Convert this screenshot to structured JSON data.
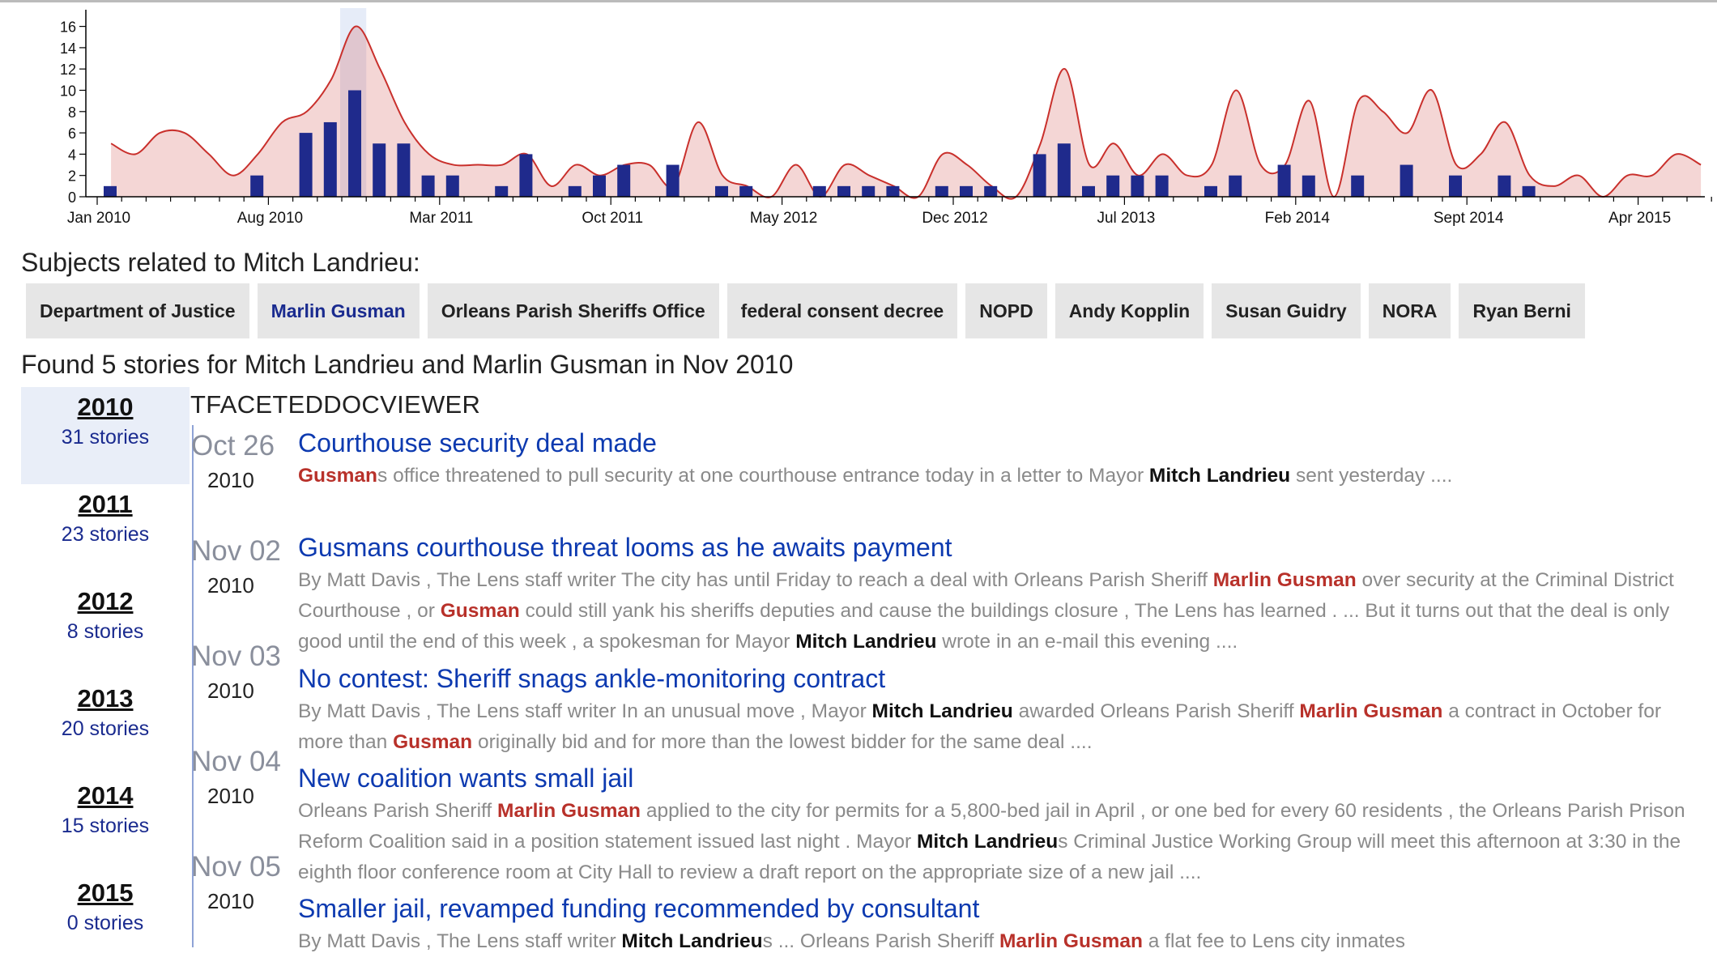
{
  "chart_data": {
    "type": "bar",
    "x_tick_labels": [
      "Jan 2010",
      "Aug 2010",
      "Mar 2011",
      "Oct 2011",
      "May 2012",
      "Dec 2012",
      "Jul 2013",
      "Feb 2014",
      "Sept 2014",
      "Apr 2015"
    ],
    "y_ticks": [
      0,
      2,
      4,
      6,
      8,
      10,
      12,
      14,
      16
    ],
    "ylim": [
      0,
      17
    ],
    "highlight_month_index": 10,
    "series": [
      {
        "type": "bar",
        "color": "#1f2a8c",
        "points": [
          [
            0,
            1
          ],
          [
            6,
            2
          ],
          [
            8,
            6
          ],
          [
            9,
            7
          ],
          [
            10,
            10
          ],
          [
            11,
            5
          ],
          [
            12,
            5
          ],
          [
            13,
            2
          ],
          [
            14,
            2
          ],
          [
            16,
            1
          ],
          [
            17,
            4
          ],
          [
            19,
            1
          ],
          [
            20,
            2
          ],
          [
            21,
            3
          ],
          [
            23,
            3
          ],
          [
            25,
            1
          ],
          [
            26,
            1
          ],
          [
            29,
            1
          ],
          [
            30,
            1
          ],
          [
            31,
            1
          ],
          [
            32,
            1
          ],
          [
            34,
            1
          ],
          [
            35,
            1
          ],
          [
            36,
            1
          ],
          [
            38,
            4
          ],
          [
            39,
            5
          ],
          [
            40,
            1
          ],
          [
            41,
            2
          ],
          [
            42,
            2
          ],
          [
            43,
            2
          ],
          [
            45,
            1
          ],
          [
            46,
            2
          ],
          [
            48,
            3
          ],
          [
            49,
            2
          ],
          [
            51,
            2
          ],
          [
            53,
            3
          ],
          [
            55,
            2
          ],
          [
            57,
            2
          ],
          [
            58,
            1
          ]
        ]
      },
      {
        "type": "area",
        "color": "#c9302c",
        "points": [
          [
            0,
            5
          ],
          [
            1,
            4
          ],
          [
            2,
            6
          ],
          [
            3,
            6
          ],
          [
            4,
            4
          ],
          [
            5,
            2
          ],
          [
            6,
            4
          ],
          [
            7,
            7
          ],
          [
            8,
            8
          ],
          [
            9,
            11
          ],
          [
            10,
            16
          ],
          [
            11,
            12
          ],
          [
            12,
            7
          ],
          [
            13,
            4
          ],
          [
            14,
            3
          ],
          [
            15,
            3
          ],
          [
            16,
            3
          ],
          [
            17,
            4
          ],
          [
            18,
            1
          ],
          [
            19,
            3
          ],
          [
            20,
            2
          ],
          [
            21,
            3
          ],
          [
            22,
            3
          ],
          [
            23,
            1
          ],
          [
            24,
            7
          ],
          [
            25,
            2
          ],
          [
            26,
            1
          ],
          [
            27,
            0
          ],
          [
            28,
            3
          ],
          [
            29,
            0
          ],
          [
            30,
            3
          ],
          [
            31,
            2
          ],
          [
            32,
            1
          ],
          [
            33,
            0
          ],
          [
            34,
            4
          ],
          [
            35,
            3
          ],
          [
            36,
            1
          ],
          [
            37,
            0
          ],
          [
            38,
            5
          ],
          [
            39,
            12
          ],
          [
            40,
            3
          ],
          [
            41,
            5
          ],
          [
            42,
            2
          ],
          [
            43,
            4
          ],
          [
            44,
            2
          ],
          [
            45,
            3
          ],
          [
            46,
            10
          ],
          [
            47,
            3
          ],
          [
            48,
            3
          ],
          [
            49,
            9
          ],
          [
            50,
            0
          ],
          [
            51,
            9
          ],
          [
            52,
            8
          ],
          [
            53,
            6
          ],
          [
            54,
            10
          ],
          [
            55,
            3
          ],
          [
            56,
            4
          ],
          [
            57,
            7
          ],
          [
            58,
            2
          ],
          [
            59,
            1
          ],
          [
            60,
            2
          ],
          [
            61,
            0
          ],
          [
            62,
            2
          ],
          [
            63,
            2
          ],
          [
            64,
            4
          ],
          [
            65,
            3
          ]
        ]
      }
    ]
  },
  "subjects": {
    "title": "Subjects related to Mitch Landrieu:",
    "items": [
      "Department of Justice",
      "Marlin Gusman",
      "Orleans Parish Sheriffs Office",
      "federal consent decree",
      "NOPD",
      "Andy Kopplin",
      "Susan Guidry",
      "NORA",
      "Ryan Berni"
    ],
    "active": "Marlin Gusman"
  },
  "found_text": "Found 5 stories for Mitch Landrieu and Marlin Gusman in Nov 2010",
  "years": [
    {
      "year": "2010",
      "count": "31 stories",
      "selected": true
    },
    {
      "year": "2011",
      "count": "23 stories"
    },
    {
      "year": "2012",
      "count": "8 stories"
    },
    {
      "year": "2013",
      "count": "20 stories"
    },
    {
      "year": "2014",
      "count": "15 stories"
    },
    {
      "year": "2015",
      "count": "0 stories"
    }
  ],
  "viewer_title": "TFACETEDDOCVIEWER",
  "stories": [
    {
      "date": "Oct 26",
      "year": "2010",
      "title": "Courthouse security deal made",
      "snippet": [
        [
          "r",
          "Gusman"
        ],
        [
          "t",
          "s office threatened to pull security at one courthouse entrance today in a letter to Mayor "
        ],
        [
          "b",
          "Mitch Landrieu"
        ],
        [
          "t",
          " sent yesterday ...."
        ]
      ]
    },
    {
      "date": "Nov 02",
      "year": "2010",
      "title": "Gusmans courthouse threat looms as he awaits payment",
      "snippet": [
        [
          "t",
          "By Matt Davis , The Lens staff writer The city has until Friday to reach a deal with Orleans Parish Sheriff "
        ],
        [
          "r",
          "Marlin Gusman"
        ],
        [
          "t",
          " over security at the Criminal District Courthouse , or "
        ],
        [
          "r",
          "Gusman"
        ],
        [
          "t",
          " could still yank his sheriffs deputies and cause the buildings closure , The Lens has learned . ... But it turns out that the deal is only good until the end of this week , a spokesman for Mayor "
        ],
        [
          "b",
          "Mitch Landrieu"
        ],
        [
          "t",
          " wrote in an e-mail this evening ...."
        ]
      ]
    },
    {
      "date": "Nov 03",
      "year": "2010",
      "title": "No contest: Sheriff snags ankle-monitoring contract",
      "snippet": [
        [
          "t",
          "By Matt Davis , The Lens staff writer In an unusual move , Mayor "
        ],
        [
          "b",
          "Mitch Landrieu"
        ],
        [
          "t",
          " awarded Orleans Parish Sheriff "
        ],
        [
          "r",
          "Marlin Gusman"
        ],
        [
          "t",
          " a contract in October for more than "
        ],
        [
          "r",
          "Gusman"
        ],
        [
          "t",
          " originally bid and for more than the lowest bidder for the same deal ...."
        ]
      ]
    },
    {
      "date": "Nov 04",
      "year": "2010",
      "title": "New coalition wants small jail",
      "snippet": [
        [
          "t",
          "Orleans Parish Sheriff "
        ],
        [
          "r",
          "Marlin Gusman"
        ],
        [
          "t",
          " applied to the city for permits for a 5,800-bed jail in April , or one bed for every 60 residents , the Orleans Parish Prison Reform Coalition said in a position statement issued last night . Mayor "
        ],
        [
          "b",
          "Mitch Landrieu"
        ],
        [
          "t",
          "s Criminal Justice Working Group will meet this afternoon at 3:30 in the eighth floor conference room at City Hall to review a draft report on the appropriate size of a new jail ...."
        ]
      ]
    },
    {
      "date": "Nov 05",
      "year": "2010",
      "title": "Smaller jail, revamped funding recommended by consultant",
      "snippet": [
        [
          "t",
          "By Matt Davis , The Lens staff writer "
        ],
        [
          "b",
          "Mitch Landrieu"
        ],
        [
          "t",
          "s ... Orleans Parish Sheriff "
        ],
        [
          "r",
          "Marlin Gusman"
        ],
        [
          "t",
          " a flat fee to Lens city inmates"
        ]
      ]
    }
  ]
}
